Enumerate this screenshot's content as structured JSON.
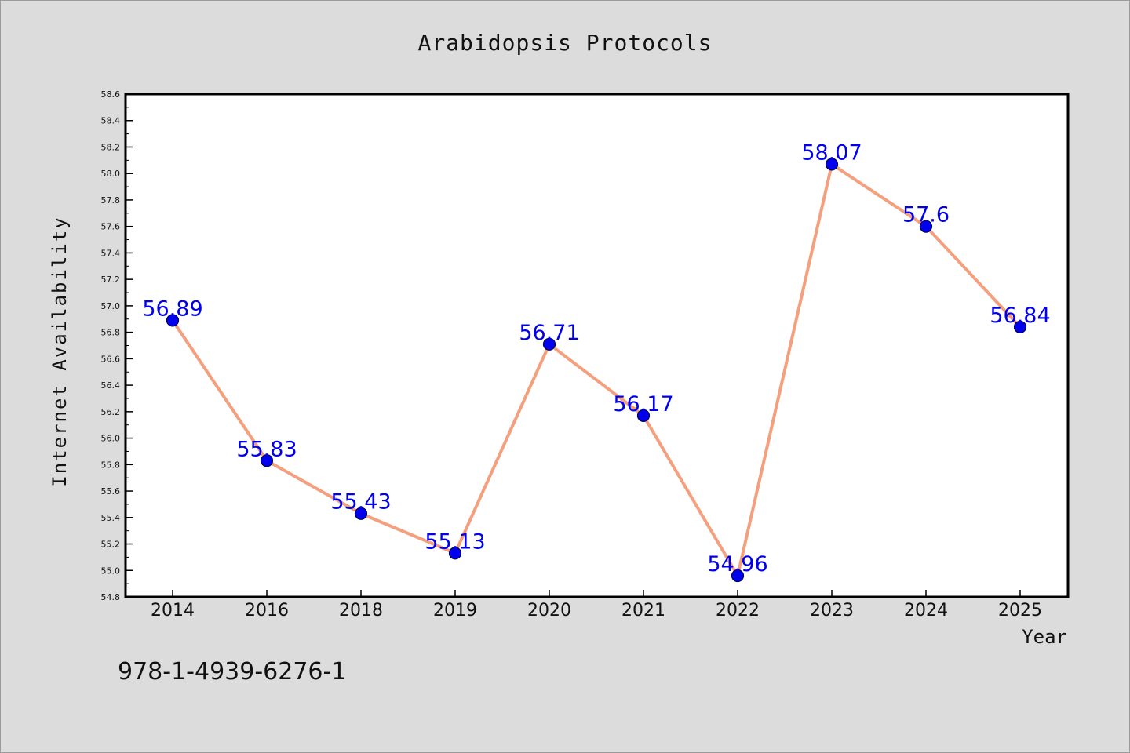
{
  "chart_data": {
    "type": "line",
    "title": "Arabidopsis Protocols",
    "xlabel": "Year",
    "ylabel": "Internet Availability",
    "categories": [
      "2014",
      "2016",
      "2018",
      "2019",
      "2020",
      "2021",
      "2022",
      "2023",
      "2024",
      "2025"
    ],
    "values": [
      56.89,
      55.83,
      55.43,
      55.13,
      56.71,
      56.17,
      54.96,
      58.07,
      57.6,
      56.84
    ],
    "data_labels": [
      "56.89",
      "55.83",
      "55.43",
      "55.13",
      "56.71",
      "56.17",
      "54.96",
      "58.07",
      "57.6",
      "56.84"
    ],
    "ylim": [
      54.8,
      58.6
    ],
    "yticks": [
      "54.8",
      "55.0",
      "55.2",
      "55.4",
      "55.6",
      "55.8",
      "56.0",
      "56.2",
      "56.4",
      "56.6",
      "56.8",
      "57.0",
      "57.2",
      "57.4",
      "57.6",
      "57.8",
      "58.0",
      "58.2",
      "58.4",
      "58.6"
    ],
    "grid": false,
    "line_color": "#f4a07e",
    "marker_color": "#0000ee",
    "label_color": "#0000ee"
  },
  "footer": {
    "isbn": "978-1-4939-6276-1"
  }
}
